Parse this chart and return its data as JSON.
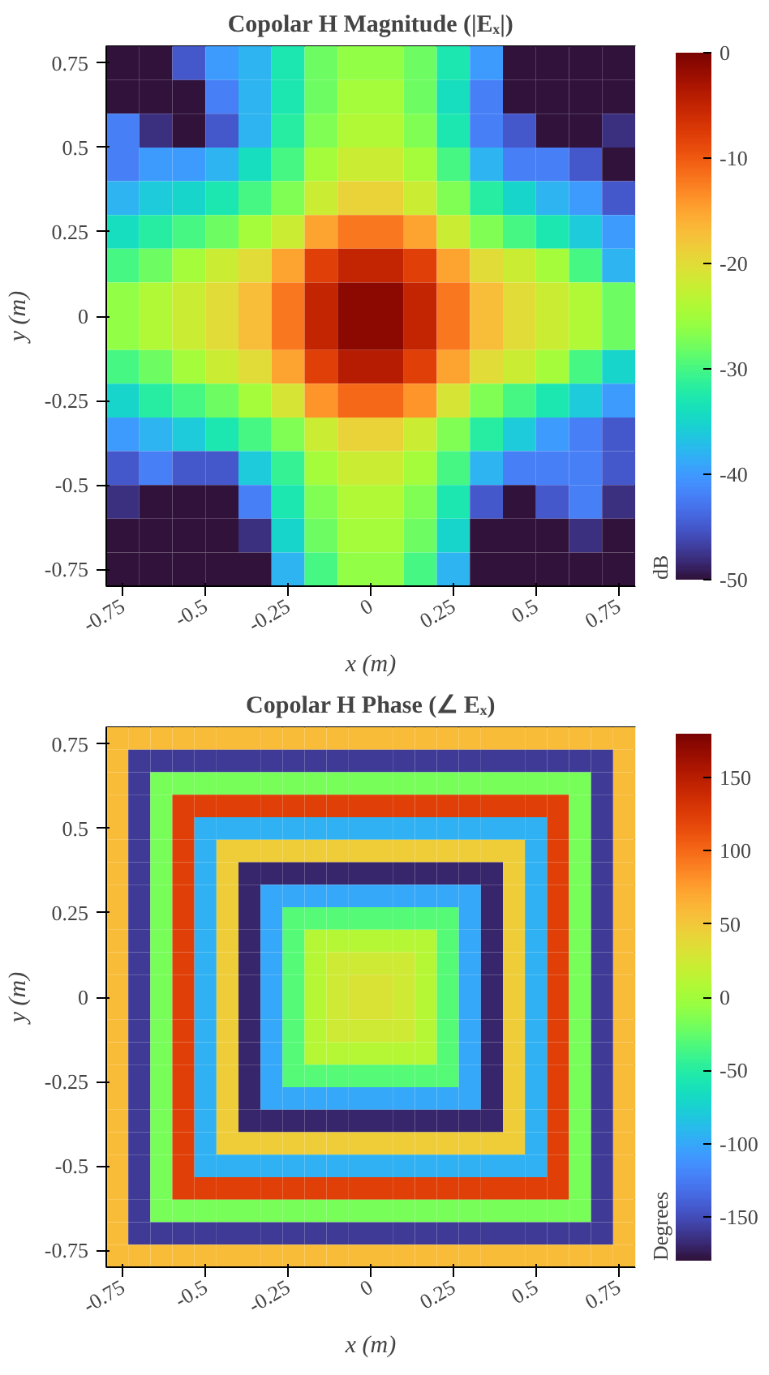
{
  "chart_data": [
    {
      "type": "heatmap",
      "title": "Copolar H Magnitude (|Eₓ|)",
      "xlabel": "x (m)",
      "ylabel": "y (m)",
      "clabel": "dB",
      "x": [
        -0.75,
        -0.65,
        -0.55,
        -0.45,
        -0.35,
        -0.25,
        -0.15,
        -0.05,
        0.05,
        0.15,
        0.25,
        0.35,
        0.45,
        0.55,
        0.65,
        0.75
      ],
      "y": [
        0.75,
        0.65,
        0.55,
        0.45,
        0.35,
        0.25,
        0.15,
        0.05,
        -0.05,
        -0.15,
        -0.25,
        -0.35,
        -0.45,
        -0.55,
        -0.65,
        -0.75
      ],
      "xlim": [
        -0.8,
        0.8
      ],
      "ylim": [
        -0.8,
        0.8
      ],
      "xticks": [
        -0.75,
        -0.5,
        -0.25,
        0,
        0.25,
        0.5,
        0.75
      ],
      "yticks": [
        -0.75,
        -0.5,
        -0.25,
        0,
        0.25,
        0.5,
        0.75
      ],
      "clim": [
        -50,
        0
      ],
      "cticks": [
        -50,
        -40,
        -30,
        -20,
        -10,
        0
      ],
      "cells": [
        [
          -50,
          -50,
          -45,
          -40,
          -38,
          -33,
          -28,
          -26,
          -26,
          -28,
          -33,
          -40,
          -50,
          -50,
          -50,
          -50
        ],
        [
          -50,
          -50,
          -50,
          -42,
          -38,
          -33,
          -28,
          -25,
          -25,
          -28,
          -34,
          -42,
          -50,
          -50,
          -50,
          -50
        ],
        [
          -42,
          -48,
          -50,
          -45,
          -38,
          -32,
          -27,
          -24,
          -24,
          -27,
          -33,
          -42,
          -45,
          -50,
          -50,
          -48
        ],
        [
          -42,
          -40,
          -40,
          -38,
          -34,
          -30,
          -25,
          -22,
          -22,
          -25,
          -30,
          -38,
          -42,
          -42,
          -45,
          -50
        ],
        [
          -38,
          -36,
          -35,
          -33,
          -30,
          -27,
          -22,
          -19,
          -19,
          -22,
          -27,
          -32,
          -35,
          -38,
          -40,
          -45
        ],
        [
          -34,
          -32,
          -30,
          -28,
          -25,
          -22,
          -15,
          -12,
          -12,
          -15,
          -22,
          -27,
          -30,
          -33,
          -36,
          -40
        ],
        [
          -30,
          -28,
          -25,
          -22,
          -20,
          -15,
          -8,
          -5,
          -5,
          -8,
          -15,
          -20,
          -22,
          -25,
          -30,
          -38
        ],
        [
          -26,
          -24,
          -22,
          -20,
          -17,
          -12,
          -5,
          -1,
          -1,
          -5,
          -12,
          -17,
          -20,
          -22,
          -24,
          -28
        ],
        [
          -26,
          -24,
          -22,
          -20,
          -17,
          -12,
          -5,
          -1,
          -1,
          -5,
          -12,
          -17,
          -20,
          -22,
          -24,
          -28
        ],
        [
          -30,
          -28,
          -25,
          -22,
          -20,
          -15,
          -8,
          -4,
          -4,
          -8,
          -15,
          -20,
          -22,
          -25,
          -30,
          -35
        ],
        [
          -35,
          -32,
          -30,
          -28,
          -25,
          -21,
          -14,
          -11,
          -11,
          -14,
          -21,
          -27,
          -30,
          -33,
          -36,
          -40
        ],
        [
          -40,
          -38,
          -36,
          -33,
          -30,
          -27,
          -22,
          -19,
          -19,
          -22,
          -27,
          -32,
          -36,
          -40,
          -42,
          -45
        ],
        [
          -45,
          -42,
          -45,
          -45,
          -36,
          -31,
          -25,
          -22,
          -22,
          -25,
          -30,
          -38,
          -42,
          -42,
          -42,
          -45
        ],
        [
          -48,
          -50,
          -50,
          -50,
          -42,
          -33,
          -27,
          -24,
          -24,
          -27,
          -33,
          -45,
          -50,
          -45,
          -42,
          -48
        ],
        [
          -50,
          -50,
          -50,
          -50,
          -48,
          -35,
          -28,
          -25,
          -25,
          -28,
          -35,
          -50,
          -50,
          -50,
          -48,
          -50
        ],
        [
          -50,
          -50,
          -50,
          -50,
          -50,
          -38,
          -30,
          -26,
          -26,
          -30,
          -38,
          -50,
          -50,
          -50,
          -50,
          -50
        ]
      ]
    },
    {
      "type": "heatmap",
      "title": "Copolar H Phase (∠ Eₓ)",
      "xlabel": "x (m)",
      "ylabel": "y (m)",
      "clabel": "Degrees",
      "x": [
        -0.7667,
        -0.7,
        -0.6333,
        -0.5667,
        -0.5,
        -0.4333,
        -0.3667,
        -0.3,
        -0.2333,
        -0.1667,
        -0.1,
        -0.0333,
        0.0333,
        0.1,
        0.1667,
        0.2333,
        0.3,
        0.3667,
        0.4333,
        0.5,
        0.5667,
        0.6333,
        0.7,
        0.7667
      ],
      "y": [
        0.7667,
        0.7,
        0.6333,
        0.5667,
        0.5,
        0.4333,
        0.3667,
        0.3,
        0.2333,
        0.1667,
        0.1,
        0.0333,
        -0.0333,
        -0.1,
        -0.1667,
        -0.2333,
        -0.3,
        -0.3667,
        -0.4333,
        -0.5,
        -0.5667,
        -0.6333,
        -0.7,
        -0.7667
      ],
      "xlim": [
        -0.8,
        0.8
      ],
      "ylim": [
        -0.8,
        0.8
      ],
      "xticks": [
        -0.75,
        -0.5,
        -0.25,
        0,
        0.25,
        0.5,
        0.75
      ],
      "yticks": [
        -0.75,
        -0.5,
        -0.25,
        0,
        0.25,
        0.5,
        0.75
      ],
      "clim": [
        -180,
        180
      ],
      "cticks": [
        -150,
        -100,
        -50,
        0,
        50,
        100,
        150
      ],
      "cells": [
        [
          59,
          59,
          59,
          59,
          59,
          59,
          59,
          59,
          59,
          59,
          59,
          59,
          59,
          59,
          59,
          59,
          59,
          59,
          59,
          59,
          59,
          59,
          59,
          59
        ],
        [
          59,
          -159,
          -159,
          -159,
          -159,
          -159,
          -159,
          -159,
          -159,
          -159,
          -159,
          -159,
          -159,
          -159,
          -159,
          -159,
          -159,
          -159,
          -159,
          -159,
          -159,
          -159,
          -159,
          59
        ],
        [
          59,
          -159,
          -17,
          -17,
          -17,
          -17,
          -17,
          -17,
          -17,
          -17,
          -17,
          -17,
          -17,
          -17,
          -17,
          -17,
          -17,
          -17,
          -17,
          -17,
          -17,
          -17,
          -159,
          59
        ],
        [
          59,
          -159,
          -17,
          123,
          123,
          123,
          123,
          123,
          123,
          123,
          123,
          123,
          123,
          123,
          123,
          123,
          123,
          123,
          123,
          123,
          123,
          -17,
          -159,
          59
        ],
        [
          59,
          -159,
          -17,
          123,
          -95,
          -95,
          -95,
          -95,
          -95,
          -95,
          -95,
          -95,
          -95,
          -95,
          -95,
          -95,
          -95,
          -95,
          -95,
          -95,
          123,
          -17,
          -159,
          59
        ],
        [
          59,
          -159,
          -17,
          123,
          -95,
          47,
          47,
          47,
          47,
          47,
          47,
          47,
          47,
          47,
          47,
          47,
          47,
          47,
          47,
          -95,
          123,
          -17,
          -159,
          59
        ],
        [
          59,
          -159,
          -17,
          123,
          -95,
          47,
          -170,
          -170,
          -170,
          -170,
          -170,
          -170,
          -170,
          -170,
          -170,
          -170,
          -170,
          -170,
          47,
          -95,
          123,
          -17,
          -159,
          59
        ],
        [
          59,
          -159,
          -17,
          123,
          -95,
          47,
          -170,
          -100,
          -100,
          -100,
          -100,
          -100,
          -100,
          -100,
          -100,
          -100,
          -100,
          -170,
          47,
          -95,
          123,
          -17,
          -159,
          59
        ],
        [
          59,
          -159,
          -17,
          123,
          -95,
          47,
          -170,
          -100,
          -30,
          -30,
          -30,
          -30,
          -30,
          -30,
          -30,
          -30,
          -100,
          -170,
          47,
          -95,
          123,
          -17,
          -159,
          59
        ],
        [
          59,
          -159,
          -17,
          123,
          -95,
          47,
          -170,
          -100,
          -30,
          10,
          10,
          10,
          10,
          10,
          10,
          -30,
          -100,
          -170,
          47,
          -95,
          123,
          -17,
          -159,
          59
        ],
        [
          59,
          -159,
          -17,
          123,
          -95,
          47,
          -170,
          -100,
          -30,
          10,
          25,
          25,
          25,
          25,
          10,
          -30,
          -100,
          -170,
          47,
          -95,
          123,
          -17,
          -159,
          59
        ],
        [
          59,
          -159,
          -17,
          123,
          -95,
          47,
          -170,
          -100,
          -30,
          10,
          25,
          30,
          30,
          25,
          10,
          -30,
          -100,
          -170,
          47,
          -95,
          123,
          -17,
          -159,
          59
        ],
        [
          59,
          -159,
          -17,
          123,
          -95,
          47,
          -170,
          -100,
          -30,
          10,
          25,
          30,
          30,
          25,
          10,
          -30,
          -100,
          -170,
          47,
          -95,
          123,
          -17,
          -159,
          59
        ],
        [
          59,
          -159,
          -17,
          123,
          -95,
          47,
          -170,
          -100,
          -30,
          10,
          25,
          25,
          25,
          25,
          10,
          -30,
          -100,
          -170,
          47,
          -95,
          123,
          -17,
          -159,
          59
        ],
        [
          59,
          -159,
          -17,
          123,
          -95,
          47,
          -170,
          -100,
          -30,
          10,
          10,
          10,
          10,
          10,
          10,
          -30,
          -100,
          -170,
          47,
          -95,
          123,
          -17,
          -159,
          59
        ],
        [
          59,
          -159,
          -17,
          123,
          -95,
          47,
          -170,
          -100,
          -30,
          -30,
          -30,
          -30,
          -30,
          -30,
          -30,
          -30,
          -100,
          -170,
          47,
          -95,
          123,
          -17,
          -159,
          59
        ],
        [
          59,
          -159,
          -17,
          123,
          -95,
          47,
          -170,
          -100,
          -100,
          -100,
          -100,
          -100,
          -100,
          -100,
          -100,
          -100,
          -100,
          -170,
          47,
          -95,
          123,
          -17,
          -159,
          59
        ],
        [
          59,
          -159,
          -17,
          123,
          -95,
          47,
          -170,
          -170,
          -170,
          -170,
          -170,
          -170,
          -170,
          -170,
          -170,
          -170,
          -170,
          -170,
          47,
          -95,
          123,
          -17,
          -159,
          59
        ],
        [
          59,
          -159,
          -17,
          123,
          -95,
          47,
          47,
          47,
          47,
          47,
          47,
          47,
          47,
          47,
          47,
          47,
          47,
          47,
          47,
          -95,
          123,
          -17,
          -159,
          59
        ],
        [
          59,
          -159,
          -17,
          123,
          -95,
          -95,
          -95,
          -95,
          -95,
          -95,
          -95,
          -95,
          -95,
          -95,
          -95,
          -95,
          -95,
          -95,
          -95,
          -95,
          123,
          -17,
          -159,
          59
        ],
        [
          59,
          -159,
          -17,
          123,
          123,
          123,
          123,
          123,
          123,
          123,
          123,
          123,
          123,
          123,
          123,
          123,
          123,
          123,
          123,
          123,
          123,
          -17,
          -159,
          59
        ],
        [
          59,
          -159,
          -17,
          -17,
          -17,
          -17,
          -17,
          -17,
          -17,
          -17,
          -17,
          -17,
          -17,
          -17,
          -17,
          -17,
          -17,
          -17,
          -17,
          -17,
          -17,
          -17,
          -159,
          59
        ],
        [
          59,
          -159,
          -159,
          -159,
          -159,
          -159,
          -159,
          -159,
          -159,
          -159,
          -159,
          -159,
          -159,
          -159,
          -159,
          -159,
          -159,
          -159,
          -159,
          -159,
          -159,
          -159,
          -159,
          59
        ],
        [
          59,
          59,
          59,
          59,
          59,
          59,
          59,
          59,
          59,
          59,
          59,
          59,
          59,
          59,
          59,
          59,
          59,
          59,
          59,
          59,
          59,
          59,
          59,
          59
        ]
      ]
    }
  ]
}
